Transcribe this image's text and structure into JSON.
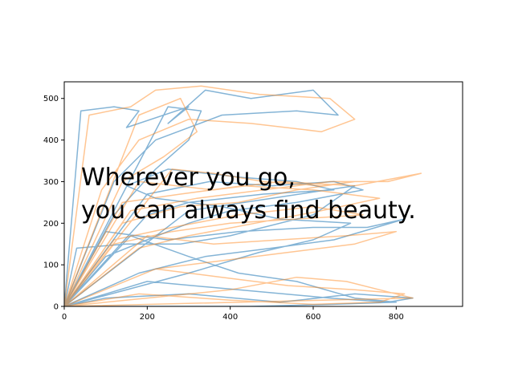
{
  "chart_data": {
    "type": "line",
    "title": "",
    "xlabel": "",
    "ylabel": "",
    "xlim": [
      0,
      960
    ],
    "ylim": [
      0,
      540
    ],
    "xticks": [
      0,
      200,
      400,
      600,
      800
    ],
    "yticks": [
      0,
      100,
      200,
      300,
      400,
      500
    ],
    "grid": false,
    "legend": "none",
    "annotation_lines": [
      "Wherever you go,",
      "you can always find beauty."
    ],
    "series": [
      {
        "color": "#1f77b4",
        "opacity": 0.55,
        "points": [
          [
            0,
            0
          ],
          [
            40,
            470
          ],
          [
            120,
            480
          ],
          [
            180,
            470
          ],
          [
            150,
            430
          ],
          [
            300,
            480
          ],
          [
            250,
            440
          ],
          [
            340,
            520
          ],
          [
            450,
            500
          ],
          [
            600,
            520
          ],
          [
            660,
            460
          ],
          [
            560,
            470
          ],
          [
            380,
            460
          ],
          [
            220,
            400
          ],
          [
            120,
            300
          ],
          [
            0,
            0
          ],
          [
            200,
            270
          ],
          [
            350,
            300
          ],
          [
            500,
            290
          ],
          [
            650,
            300
          ],
          [
            720,
            280
          ],
          [
            560,
            250
          ],
          [
            400,
            230
          ],
          [
            300,
            200
          ],
          [
            200,
            160
          ],
          [
            100,
            120
          ],
          [
            0,
            0
          ],
          [
            300,
            230
          ],
          [
            500,
            260
          ],
          [
            700,
            290
          ],
          [
            600,
            220
          ],
          [
            400,
            170
          ],
          [
            280,
            150
          ],
          [
            150,
            150
          ],
          [
            30,
            140
          ],
          [
            0,
            0
          ],
          [
            200,
            60
          ],
          [
            420,
            40
          ],
          [
            640,
            20
          ],
          [
            780,
            10
          ],
          [
            840,
            20
          ],
          [
            700,
            30
          ],
          [
            520,
            10
          ],
          [
            300,
            30
          ],
          [
            100,
            20
          ],
          [
            0,
            0
          ],
          [
            300,
            80
          ],
          [
            470,
            130
          ],
          [
            600,
            160
          ],
          [
            690,
            200
          ],
          [
            520,
            210
          ],
          [
            380,
            240
          ],
          [
            220,
            260
          ],
          [
            150,
            290
          ],
          [
            250,
            330
          ],
          [
            430,
            310
          ],
          [
            560,
            300
          ],
          [
            650,
            280
          ],
          [
            480,
            270
          ],
          [
            300,
            250
          ],
          [
            200,
            220
          ],
          [
            0,
            0
          ],
          [
            100,
            180
          ],
          [
            250,
            160
          ],
          [
            420,
            180
          ],
          [
            600,
            190
          ],
          [
            730,
            190
          ],
          [
            820,
            210
          ],
          [
            650,
            160
          ],
          [
            500,
            140
          ],
          [
            340,
            120
          ],
          [
            180,
            80
          ],
          [
            0,
            0
          ],
          [
            160,
            170
          ],
          [
            300,
            120
          ],
          [
            420,
            80
          ],
          [
            560,
            60
          ],
          [
            700,
            20
          ],
          [
            800,
            10
          ],
          [
            650,
            5
          ],
          [
            450,
            0
          ],
          [
            200,
            0
          ],
          [
            0,
            0
          ],
          [
            250,
            480
          ],
          [
            330,
            470
          ],
          [
            300,
            400
          ],
          [
            220,
            330
          ],
          [
            120,
            220
          ],
          [
            0,
            0
          ]
        ]
      },
      {
        "color": "#ff7f0e",
        "opacity": 0.45,
        "points": [
          [
            0,
            0
          ],
          [
            60,
            460
          ],
          [
            160,
            480
          ],
          [
            220,
            520
          ],
          [
            330,
            530
          ],
          [
            470,
            510
          ],
          [
            640,
            500
          ],
          [
            700,
            450
          ],
          [
            620,
            420
          ],
          [
            450,
            440
          ],
          [
            300,
            450
          ],
          [
            180,
            400
          ],
          [
            90,
            280
          ],
          [
            0,
            0
          ],
          [
            180,
            300
          ],
          [
            360,
            280
          ],
          [
            520,
            300
          ],
          [
            700,
            290
          ],
          [
            860,
            320
          ],
          [
            780,
            300
          ],
          [
            640,
            300
          ],
          [
            480,
            280
          ],
          [
            320,
            260
          ],
          [
            160,
            230
          ],
          [
            0,
            0
          ],
          [
            120,
            150
          ],
          [
            260,
            180
          ],
          [
            400,
            200
          ],
          [
            560,
            210
          ],
          [
            720,
            220
          ],
          [
            600,
            240
          ],
          [
            420,
            220
          ],
          [
            260,
            190
          ],
          [
            120,
            160
          ],
          [
            0,
            0
          ],
          [
            220,
            90
          ],
          [
            380,
            70
          ],
          [
            540,
            50
          ],
          [
            700,
            40
          ],
          [
            820,
            30
          ],
          [
            760,
            10
          ],
          [
            600,
            5
          ],
          [
            400,
            15
          ],
          [
            180,
            30
          ],
          [
            0,
            0
          ],
          [
            140,
            250
          ],
          [
            280,
            270
          ],
          [
            430,
            290
          ],
          [
            600,
            280
          ],
          [
            760,
            260
          ],
          [
            620,
            230
          ],
          [
            460,
            200
          ],
          [
            300,
            170
          ],
          [
            180,
            140
          ],
          [
            0,
            0
          ],
          [
            260,
            330
          ],
          [
            360,
            320
          ],
          [
            480,
            300
          ],
          [
            620,
            290
          ],
          [
            700,
            300
          ],
          [
            560,
            280
          ],
          [
            420,
            250
          ],
          [
            280,
            240
          ],
          [
            140,
            200
          ],
          [
            0,
            0
          ],
          [
            200,
            170
          ],
          [
            360,
            150
          ],
          [
            520,
            160
          ],
          [
            680,
            170
          ],
          [
            800,
            180
          ],
          [
            700,
            150
          ],
          [
            540,
            130
          ],
          [
            380,
            110
          ],
          [
            220,
            90
          ],
          [
            0,
            0
          ],
          [
            180,
            460
          ],
          [
            280,
            500
          ],
          [
            320,
            420
          ],
          [
            240,
            360
          ],
          [
            140,
            300
          ],
          [
            0,
            0
          ],
          [
            400,
            40
          ],
          [
            560,
            70
          ],
          [
            680,
            60
          ],
          [
            760,
            40
          ],
          [
            840,
            20
          ],
          [
            0,
            0
          ]
        ]
      }
    ]
  }
}
